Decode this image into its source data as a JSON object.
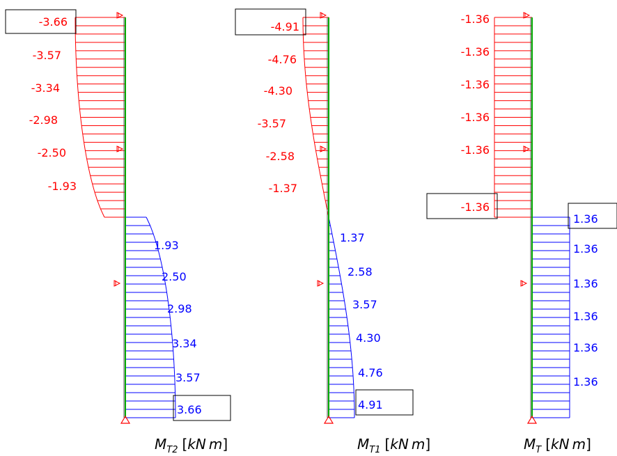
{
  "colors": {
    "negative": "#ff0000",
    "positive": "#0000ff",
    "member_green": "#00aa00",
    "member_dark": "#555555",
    "support": "#ff0000",
    "box": "#000000"
  },
  "diagrams": [
    {
      "id": "mt2",
      "caption": {
        "symbol": "M",
        "subscript": "T2",
        "unit_open": "[",
        "unit_k": "kN",
        "unit_m": "m",
        "unit_close": "]"
      },
      "negative_labels": [
        "-3.66",
        "-3.57",
        "-3.34",
        "-2.98",
        "-2.50",
        "-1.93"
      ],
      "positive_labels": [
        "1.93",
        "2.50",
        "2.98",
        "3.34",
        "3.57",
        "3.66"
      ],
      "boxed_negative": "-3.66",
      "boxed_positive": "3.66",
      "shape": "quarter-ellipse"
    },
    {
      "id": "mt1",
      "caption": {
        "symbol": "M",
        "subscript": "T1",
        "unit_open": "[",
        "unit_k": "kN",
        "unit_m": "m",
        "unit_close": "]"
      },
      "negative_labels": [
        "-4.91",
        "-4.76",
        "-4.30",
        "-3.57",
        "-2.58",
        "-1.37"
      ],
      "positive_labels": [
        "1.37",
        "2.58",
        "3.57",
        "4.30",
        "4.76",
        "4.91"
      ],
      "boxed_negative": "-4.91",
      "boxed_positive": "4.91",
      "shape": "sine"
    },
    {
      "id": "mt",
      "caption": {
        "symbol": "M",
        "subscript": "T",
        "unit_open": "[",
        "unit_k": "kN",
        "unit_m": "m",
        "unit_close": "]"
      },
      "negative_labels": [
        "-1.36",
        "-1.36",
        "-1.36",
        "-1.36",
        "-1.36",
        "-1.36"
      ],
      "positive_labels": [
        "1.36",
        "1.36",
        "1.36",
        "1.36",
        "1.36",
        "1.36"
      ],
      "boxed_negative": "-1.36",
      "boxed_positive": "1.36",
      "shape": "constant"
    }
  ]
}
